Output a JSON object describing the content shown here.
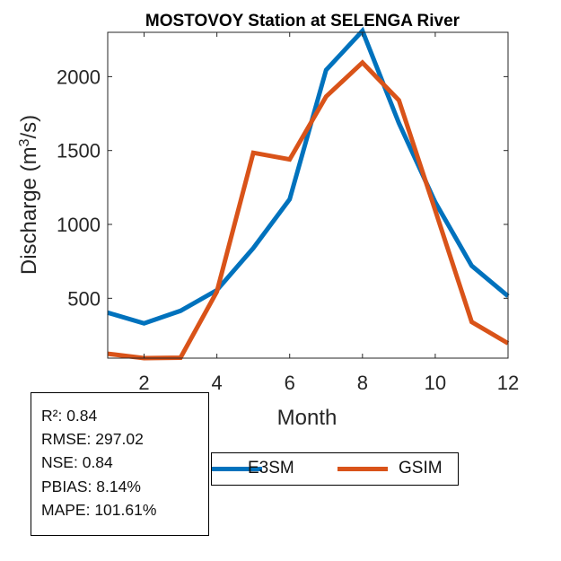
{
  "chart_data": {
    "type": "line",
    "title": "MOSTOVOY  Station at  SELENGA  River",
    "xlabel": "Month",
    "ylabel": "Discharge (m³/s)",
    "xlim": [
      1,
      12
    ],
    "ylim": [
      95,
      2300
    ],
    "xticks": [
      2,
      4,
      6,
      8,
      10,
      12
    ],
    "yticks": [
      500,
      1000,
      1500,
      2000
    ],
    "x": [
      1,
      2,
      3,
      4,
      5,
      6,
      7,
      8,
      9,
      10,
      11,
      12
    ],
    "series": [
      {
        "name": "E3SM",
        "color": "#0072BD",
        "values": [
          403,
          330,
          415,
          555,
          840,
          1170,
          2045,
          2310,
          1685,
          1150,
          720,
          515
        ]
      },
      {
        "name": "GSIM",
        "color": "#D95319",
        "values": [
          125,
          95,
          98,
          545,
          1485,
          1440,
          1865,
          2095,
          1840,
          1095,
          340,
          195
        ]
      }
    ],
    "grid": false,
    "legend_placement": "bottom",
    "stats": [
      "R²: 0.84",
      "RMSE: 297.02",
      "NSE: 0.84",
      "PBIAS: 8.14%",
      "MAPE: 101.61%"
    ]
  }
}
